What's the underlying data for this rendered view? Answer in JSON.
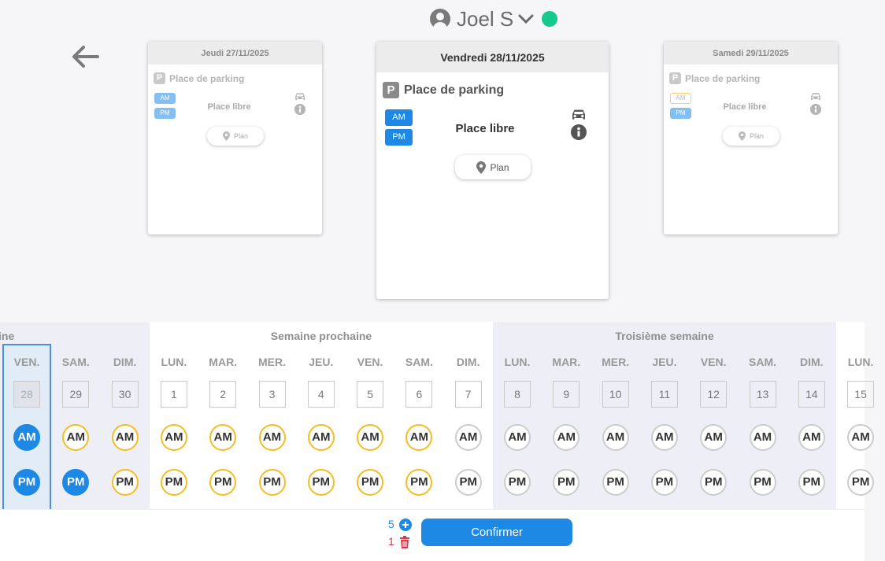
{
  "user": {
    "name": "Joel S",
    "status_color": "#14c98c"
  },
  "cards": {
    "prev": {
      "date": "Jeudi 27/11/2025",
      "parking": "Place de parking",
      "pico": "P",
      "am": "AM",
      "pm": "PM",
      "status": "Place libre",
      "plan": "Plan"
    },
    "current": {
      "date": "Vendredi 28/11/2025",
      "parking": "Place de parking",
      "pico": "P",
      "am": "AM",
      "pm": "PM",
      "status": "Place libre",
      "plan": "Plan"
    },
    "next": {
      "date": "Samedi 29/11/2025",
      "parking": "Place de parking",
      "pico": "P",
      "am": "AM",
      "pm": "PM",
      "status": "Place libre",
      "plan": "Plan"
    }
  },
  "calendar": {
    "weeks": [
      {
        "label": "ine"
      },
      {
        "label": "Semaine prochaine"
      },
      {
        "label": "Troisième semaine"
      }
    ],
    "days": [
      {
        "name": "VEN.",
        "num": "28",
        "am": "AM",
        "pm": "PM",
        "am_state": "selected",
        "pm_state": "selected"
      },
      {
        "name": "SAM.",
        "num": "29",
        "am": "AM",
        "pm": "PM",
        "am_state": "available",
        "pm_state": "selected"
      },
      {
        "name": "DIM.",
        "num": "30",
        "am": "AM",
        "pm": "PM",
        "am_state": "available",
        "pm_state": "available"
      },
      {
        "name": "LUN.",
        "num": "1",
        "am": "AM",
        "pm": "PM",
        "am_state": "available",
        "pm_state": "available"
      },
      {
        "name": "MAR.",
        "num": "2",
        "am": "AM",
        "pm": "PM",
        "am_state": "available",
        "pm_state": "available"
      },
      {
        "name": "MER.",
        "num": "3",
        "am": "AM",
        "pm": "PM",
        "am_state": "available",
        "pm_state": "available"
      },
      {
        "name": "JEU.",
        "num": "4",
        "am": "AM",
        "pm": "PM",
        "am_state": "available",
        "pm_state": "available"
      },
      {
        "name": "VEN.",
        "num": "5",
        "am": "AM",
        "pm": "PM",
        "am_state": "available",
        "pm_state": "available"
      },
      {
        "name": "SAM.",
        "num": "6",
        "am": "AM",
        "pm": "PM",
        "am_state": "available",
        "pm_state": "available"
      },
      {
        "name": "DIM.",
        "num": "7",
        "am": "AM",
        "pm": "PM",
        "am_state": "none",
        "pm_state": "none"
      },
      {
        "name": "LUN.",
        "num": "8",
        "am": "AM",
        "pm": "PM",
        "am_state": "none",
        "pm_state": "none"
      },
      {
        "name": "MAR.",
        "num": "9",
        "am": "AM",
        "pm": "PM",
        "am_state": "none",
        "pm_state": "none"
      },
      {
        "name": "MER.",
        "num": "10",
        "am": "AM",
        "pm": "PM",
        "am_state": "none",
        "pm_state": "none"
      },
      {
        "name": "JEU.",
        "num": "11",
        "am": "AM",
        "pm": "PM",
        "am_state": "none",
        "pm_state": "none"
      },
      {
        "name": "VEN.",
        "num": "12",
        "am": "AM",
        "pm": "PM",
        "am_state": "none",
        "pm_state": "none"
      },
      {
        "name": "SAM.",
        "num": "13",
        "am": "AM",
        "pm": "PM",
        "am_state": "none",
        "pm_state": "none"
      },
      {
        "name": "DIM.",
        "num": "14",
        "am": "AM",
        "pm": "PM",
        "am_state": "none",
        "pm_state": "none"
      },
      {
        "name": "LUN.",
        "num": "15",
        "am": "AM",
        "pm": "PM",
        "am_state": "none",
        "pm_state": "none"
      }
    ]
  },
  "footer": {
    "add_count": "5",
    "delete_count": "1",
    "confirm_label": "Confirmer"
  },
  "colors": {
    "primary": "#1e88e5",
    "available_ring": "#f5bd23",
    "unavailable_ring": "#cccccc",
    "delete": "#d5394b",
    "status_online": "#14c98c"
  },
  "icons": {
    "back": "arrow-left-icon",
    "user": "user-circle-icon",
    "dropdown": "chevron-down-icon",
    "car": "car-icon",
    "info": "info-icon",
    "map": "map-marker-icon",
    "add": "plus-circle-icon",
    "delete": "trash-icon"
  }
}
